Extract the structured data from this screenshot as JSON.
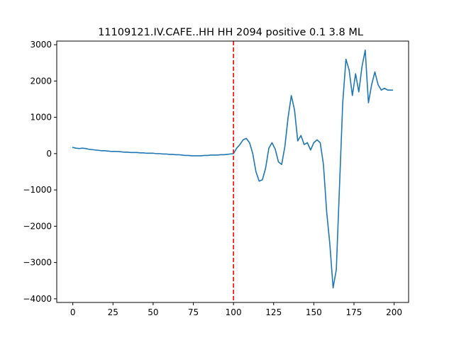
{
  "chart_data": {
    "type": "line",
    "title": "11109121.IV.CAFE..HH HH 2094 positive 0.1 3.8 ML",
    "xlabel": "",
    "ylabel": "",
    "xlim": [
      -10,
      209
    ],
    "ylim": [
      -4100,
      3100
    ],
    "xticks": [
      0,
      25,
      50,
      75,
      100,
      125,
      150,
      175,
      200
    ],
    "yticks": [
      -4000,
      -3000,
      -2000,
      -1000,
      0,
      1000,
      2000,
      3000
    ],
    "grid": false,
    "series": [
      {
        "color": "#1f77b4",
        "x": [
          0,
          2,
          4,
          6,
          8,
          10,
          12,
          14,
          16,
          18,
          20,
          22,
          24,
          26,
          28,
          30,
          32,
          34,
          36,
          38,
          40,
          42,
          44,
          46,
          48,
          50,
          52,
          54,
          56,
          58,
          60,
          62,
          64,
          66,
          68,
          70,
          72,
          74,
          76,
          78,
          80,
          82,
          84,
          86,
          88,
          90,
          92,
          94,
          96,
          98,
          100,
          102,
          104,
          106,
          108,
          110,
          112,
          114,
          116,
          118,
          120,
          122,
          124,
          126,
          128,
          130,
          132,
          134,
          136,
          138,
          140,
          142,
          144,
          146,
          148,
          150,
          152,
          154,
          156,
          158,
          160,
          162,
          164,
          166,
          168,
          170,
          172,
          174,
          176,
          178,
          180,
          182,
          184,
          186,
          188,
          190,
          192,
          194,
          196,
          198,
          199
        ],
        "y": [
          170,
          150,
          140,
          150,
          140,
          120,
          110,
          100,
          90,
          80,
          80,
          70,
          60,
          60,
          60,
          50,
          40,
          40,
          30,
          30,
          30,
          20,
          20,
          10,
          10,
          10,
          0,
          0,
          -10,
          -10,
          -20,
          -20,
          -30,
          -30,
          -40,
          -50,
          -50,
          -60,
          -60,
          -60,
          -60,
          -50,
          -50,
          -40,
          -40,
          -40,
          -30,
          -30,
          -20,
          -10,
          0,
          150,
          250,
          380,
          420,
          300,
          0,
          -500,
          -760,
          -720,
          -400,
          150,
          300,
          120,
          -230,
          -300,
          200,
          1000,
          1600,
          1200,
          350,
          500,
          250,
          300,
          100,
          300,
          380,
          300,
          -300,
          -1600,
          -2500,
          -3700,
          -3200,
          -900,
          1400,
          2600,
          2300,
          1600,
          2200,
          1700,
          2400,
          2850,
          1400,
          1900,
          2250,
          1900,
          1750,
          1800,
          1750,
          1750,
          1750
        ]
      }
    ],
    "annotations": [
      {
        "type": "vline",
        "x": 100,
        "color": "#ff0000",
        "style": "dashed"
      }
    ]
  }
}
